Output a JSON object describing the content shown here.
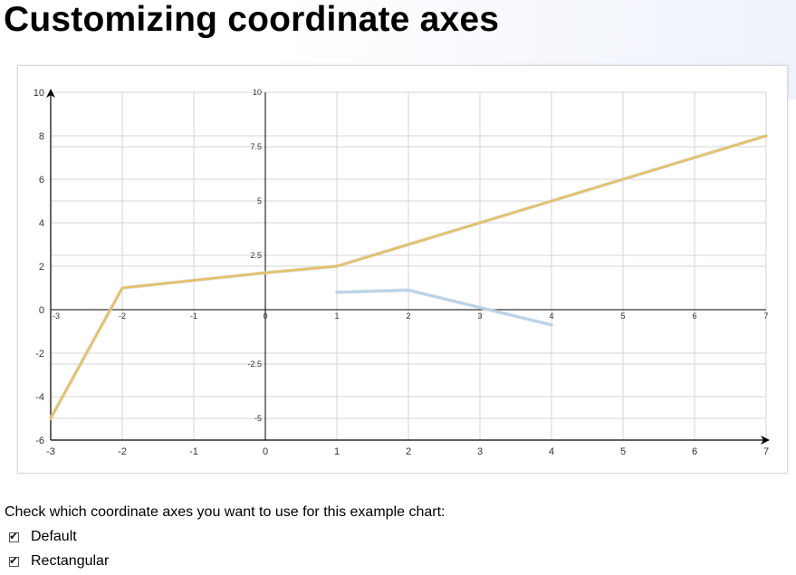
{
  "page": {
    "title": "Customizing coordinate axes",
    "prompt": "Check which coordinate axes you want to use for this example chart:",
    "options": [
      {
        "label": "Default",
        "checked": true,
        "check_mark": "✔"
      },
      {
        "label": "Rectangular",
        "checked": true,
        "check_mark": "✔"
      }
    ]
  },
  "chart_data": {
    "type": "line",
    "axes": {
      "default": {
        "x": {
          "min": -3,
          "max": 7,
          "ticks": [
            -3,
            -2,
            -1,
            0,
            1,
            2,
            3,
            4,
            5,
            6,
            7
          ]
        },
        "y": {
          "min": -6,
          "max": 10,
          "ticks": [
            -6,
            -4,
            -2,
            0,
            2,
            4,
            6,
            8,
            10
          ]
        }
      },
      "rectangular": {
        "y": {
          "min": -6,
          "max": 10,
          "ticks": [
            -5,
            -2.5,
            0,
            2.5,
            5,
            7.5,
            10
          ]
        }
      }
    },
    "series": [
      {
        "color": "#e8c060",
        "x": [
          -3,
          -2,
          0,
          1,
          4,
          7
        ],
        "y": [
          -5,
          1,
          1.7,
          2,
          5,
          8
        ]
      },
      {
        "color": "#b7d2e8",
        "x": [
          1,
          2,
          4
        ],
        "y": [
          0.8,
          0.9,
          -0.7
        ]
      }
    ],
    "grid": true,
    "colors": {
      "grid": "#d4d4d4",
      "axis": "#000000"
    }
  }
}
